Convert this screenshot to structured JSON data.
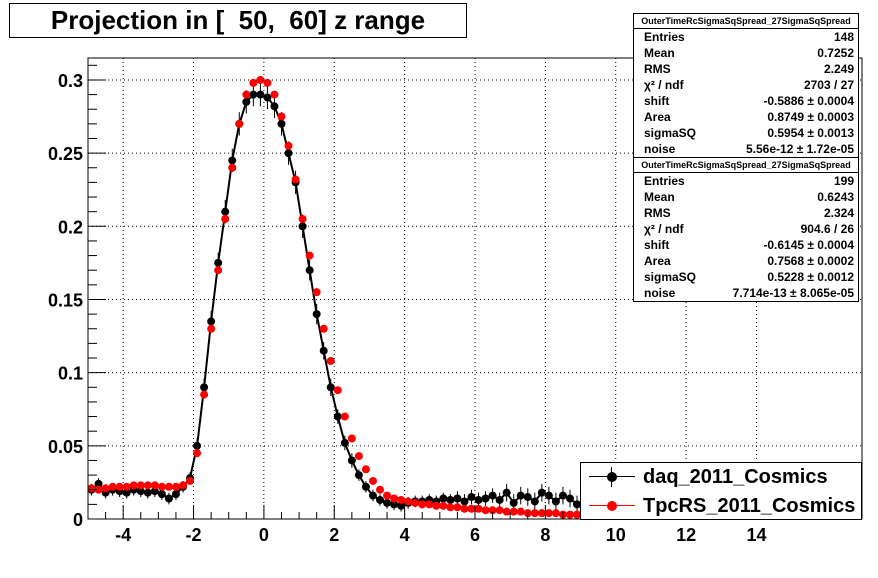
{
  "title": "Projection in [  50,  60] z range",
  "stats_boxes": [
    {
      "header": "OuterTimeRcSigmaSqSpread_27SigmaSqSpread",
      "rows": [
        {
          "label": "Entries",
          "value": "148"
        },
        {
          "label": "Mean",
          "value": "0.7252"
        },
        {
          "label": "RMS",
          "value": "2.249"
        },
        {
          "label": "χ² / ndf",
          "value": "2703 / 27"
        },
        {
          "label": "shift",
          "value": "-0.5886 ± 0.0004"
        },
        {
          "label": "Area",
          "value": "0.8749 ± 0.0003"
        },
        {
          "label": "sigmaSQ",
          "value": "0.5954 ± 0.0013"
        },
        {
          "label": "noise",
          "value": "5.56e-12 ± 1.72e-05"
        }
      ]
    },
    {
      "header": "OuterTimeRcSigmaSqSpread_27SigmaSqSpread",
      "rows": [
        {
          "label": "Entries",
          "value": "199"
        },
        {
          "label": "Mean",
          "value": "0.6243"
        },
        {
          "label": "RMS",
          "value": "2.324"
        },
        {
          "label": "χ² / ndf",
          "value": "904.6 / 26"
        },
        {
          "label": "shift",
          "value": "-0.6145 ± 0.0004"
        },
        {
          "label": "Area",
          "value": "0.7568 ± 0.0002"
        },
        {
          "label": "sigmaSQ",
          "value": "0.5228 ± 0.0012"
        },
        {
          "label": "noise",
          "value": "7.714e-13 ± 8.065e-05"
        }
      ]
    }
  ],
  "legend": [
    {
      "label": "daq_2011_Cosmics",
      "color": "#000000"
    },
    {
      "label": "TpcRS_2011_Cosmics",
      "color": "#ff0000"
    }
  ],
  "chart_data": {
    "type": "scatter",
    "title": "Projection in [  50,  60] z range",
    "xlabel": "",
    "ylabel": "",
    "xlim": [
      -5,
      17
    ],
    "ylim": [
      0,
      0.315
    ],
    "grid": true,
    "x_ticks": [
      -4,
      -2,
      0,
      2,
      4,
      6,
      8,
      10,
      12,
      14
    ],
    "x_tick_labels": [
      "-4",
      "-2",
      "0",
      "2",
      "4",
      "6",
      "8",
      "10",
      "12",
      "14"
    ],
    "y_ticks": [
      0,
      0.05,
      0.1,
      0.15,
      0.2,
      0.25,
      0.3
    ],
    "y_tick_labels": [
      "0",
      "0.05",
      "0.1",
      "0.15",
      "0.2",
      "0.25",
      "0.3"
    ],
    "legend_position": "bottom-right",
    "series": [
      {
        "name": "daq_2011_Cosmics",
        "color": "#000000",
        "fit_curve": true,
        "x": [
          -4.9,
          -4.7,
          -4.5,
          -4.3,
          -4.1,
          -3.9,
          -3.7,
          -3.5,
          -3.3,
          -3.1,
          -2.9,
          -2.7,
          -2.5,
          -2.3,
          -2.1,
          -1.9,
          -1.7,
          -1.5,
          -1.3,
          -1.1,
          -0.9,
          -0.7,
          -0.5,
          -0.3,
          -0.1,
          0.1,
          0.3,
          0.5,
          0.7,
          0.9,
          1.1,
          1.3,
          1.5,
          1.7,
          1.9,
          2.1,
          2.3,
          2.5,
          2.7,
          2.9,
          3.1,
          3.3,
          3.5,
          3.7,
          3.9,
          4.1,
          4.3,
          4.5,
          4.7,
          4.9,
          5.1,
          5.3,
          5.5,
          5.7,
          5.9,
          6.1,
          6.3,
          6.5,
          6.7,
          6.9,
          7.1,
          7.3,
          7.5,
          7.7,
          7.9,
          8.1,
          8.3,
          8.5,
          8.7,
          8.9,
          9.1
        ],
        "y": [
          0.02,
          0.024,
          0.018,
          0.02,
          0.019,
          0.018,
          0.02,
          0.019,
          0.018,
          0.019,
          0.017,
          0.014,
          0.017,
          0.022,
          0.028,
          0.05,
          0.09,
          0.135,
          0.175,
          0.21,
          0.245,
          0.27,
          0.285,
          0.29,
          0.29,
          0.288,
          0.282,
          0.27,
          0.25,
          0.23,
          0.2,
          0.17,
          0.14,
          0.115,
          0.09,
          0.07,
          0.052,
          0.04,
          0.03,
          0.022,
          0.016,
          0.013,
          0.011,
          0.01,
          0.009,
          0.011,
          0.012,
          0.012,
          0.013,
          0.012,
          0.014,
          0.013,
          0.014,
          0.012,
          0.015,
          0.013,
          0.014,
          0.016,
          0.013,
          0.018,
          0.011,
          0.016,
          0.015,
          0.012,
          0.018,
          0.016,
          0.012,
          0.016,
          0.014,
          0.01,
          0.012
        ],
        "yerr": [
          0.004,
          0.004,
          0.004,
          0.004,
          0.004,
          0.004,
          0.004,
          0.004,
          0.004,
          0.004,
          0.004,
          0.004,
          0.004,
          0.004,
          0.004,
          0.005,
          0.006,
          0.007,
          0.007,
          0.008,
          0.008,
          0.008,
          0.008,
          0.008,
          0.008,
          0.008,
          0.008,
          0.008,
          0.008,
          0.008,
          0.008,
          0.007,
          0.007,
          0.006,
          0.006,
          0.005,
          0.005,
          0.005,
          0.004,
          0.004,
          0.004,
          0.004,
          0.004,
          0.004,
          0.004,
          0.004,
          0.004,
          0.004,
          0.004,
          0.004,
          0.004,
          0.004,
          0.005,
          0.005,
          0.005,
          0.005,
          0.005,
          0.005,
          0.005,
          0.006,
          0.006,
          0.006,
          0.006,
          0.006,
          0.006,
          0.006,
          0.006,
          0.006,
          0.006,
          0.006,
          0.006
        ]
      },
      {
        "name": "TpcRS_2011_Cosmics",
        "color": "#ff0000",
        "fit_curve": false,
        "x": [
          -4.9,
          -4.7,
          -4.5,
          -4.3,
          -4.1,
          -3.9,
          -3.7,
          -3.5,
          -3.3,
          -3.1,
          -2.9,
          -2.7,
          -2.5,
          -2.3,
          -2.1,
          -1.9,
          -1.7,
          -1.5,
          -1.3,
          -1.1,
          -0.9,
          -0.7,
          -0.5,
          -0.3,
          -0.1,
          0.1,
          0.3,
          0.5,
          0.7,
          0.9,
          1.1,
          1.3,
          1.5,
          1.7,
          1.9,
          2.1,
          2.3,
          2.5,
          2.7,
          2.9,
          3.1,
          3.3,
          3.5,
          3.7,
          3.9,
          4.1,
          4.3,
          4.5,
          4.7,
          4.9,
          5.1,
          5.3,
          5.5,
          5.7,
          5.9,
          6.1,
          6.3,
          6.5,
          6.7,
          6.9,
          7.1,
          7.3,
          7.5,
          7.7,
          7.9,
          8.1,
          8.3,
          8.5,
          8.7,
          8.9,
          9.1
        ],
        "y": [
          0.021,
          0.02,
          0.021,
          0.022,
          0.022,
          0.022,
          0.023,
          0.023,
          0.023,
          0.023,
          0.022,
          0.022,
          0.022,
          0.023,
          0.026,
          0.045,
          0.085,
          0.13,
          0.17,
          0.205,
          0.24,
          0.27,
          0.29,
          0.298,
          0.3,
          0.298,
          0.29,
          0.275,
          0.255,
          0.232,
          0.205,
          0.18,
          0.155,
          0.13,
          0.108,
          0.088,
          0.07,
          0.055,
          0.043,
          0.034,
          0.026,
          0.02,
          0.016,
          0.014,
          0.013,
          0.012,
          0.011,
          0.01,
          0.01,
          0.009,
          0.009,
          0.008,
          0.008,
          0.007,
          0.007,
          0.007,
          0.006,
          0.006,
          0.006,
          0.005,
          0.005,
          0.005,
          0.004,
          0.004,
          0.004,
          0.004,
          0.004,
          0.003,
          0.003,
          0.003,
          0.003
        ]
      }
    ]
  }
}
